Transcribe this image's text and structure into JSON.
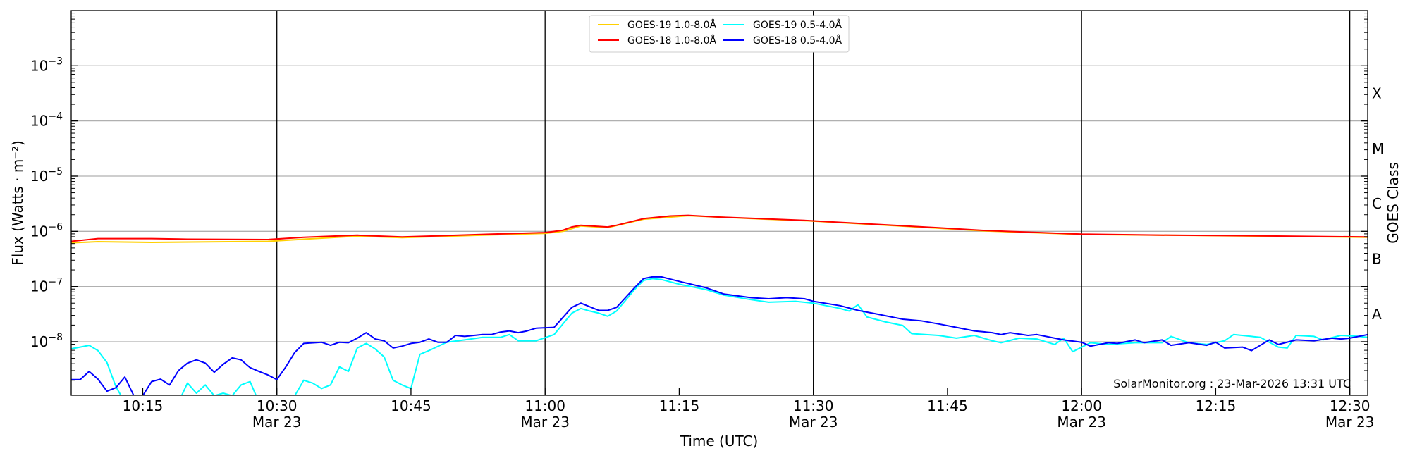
{
  "chart_data": {
    "type": "line",
    "title": "",
    "xlabel": "Time (UTC)",
    "ylabel": "Flux (Watts · m⁻²)",
    "ylabel2": "GOES Class",
    "yscale": "log",
    "ylim": [
      1.07e-09,
      0.01
    ],
    "xlim": [
      "10:07",
      "12:32"
    ],
    "grid": "horizontal at decades",
    "legend_position": "top-center",
    "annotation": "SolarMonitor.org : 23-Mar-2026 13:31 UTC",
    "x_ticks": [
      {
        "time": "10:15",
        "label": "10:15",
        "sublabel": "",
        "major": false
      },
      {
        "time": "10:30",
        "label": "10:30",
        "sublabel": "Mar 23",
        "major": true
      },
      {
        "time": "10:45",
        "label": "10:45",
        "sublabel": "",
        "major": false
      },
      {
        "time": "11:00",
        "label": "11:00",
        "sublabel": "Mar 23",
        "major": true
      },
      {
        "time": "11:15",
        "label": "11:15",
        "sublabel": "",
        "major": false
      },
      {
        "time": "11:30",
        "label": "11:30",
        "sublabel": "Mar 23",
        "major": true
      },
      {
        "time": "11:45",
        "label": "11:45",
        "sublabel": "",
        "major": false
      },
      {
        "time": "12:00",
        "label": "12:00",
        "sublabel": "Mar 23",
        "major": true
      },
      {
        "time": "12:15",
        "label": "12:15",
        "sublabel": "",
        "major": false
      },
      {
        "time": "12:30",
        "label": "12:30",
        "sublabel": "Mar 23",
        "major": true
      }
    ],
    "y_ticks": [
      {
        "value": 0.001,
        "base": "10",
        "exp": "−3"
      },
      {
        "value": 0.0001,
        "base": "10",
        "exp": "−4"
      },
      {
        "value": 1e-05,
        "base": "10",
        "exp": "−5"
      },
      {
        "value": 1e-06,
        "base": "10",
        "exp": "−6"
      },
      {
        "value": 1e-07,
        "base": "10",
        "exp": "−7"
      },
      {
        "value": 1e-08,
        "base": "10",
        "exp": "−8"
      }
    ],
    "goes_classes": [
      {
        "label": "X",
        "value": 0.000316
      },
      {
        "label": "M",
        "value": 3.16e-05
      },
      {
        "label": "C",
        "value": 3.16e-06
      },
      {
        "label": "B",
        "value": 3.16e-07
      },
      {
        "label": "A",
        "value": 3.16e-08
      }
    ],
    "series": [
      {
        "name": "GOES-19 1.0-8.0Å",
        "color": "#ffd000",
        "points": [
          [
            "10:07",
            6.2e-07
          ],
          [
            "10:10",
            6.5e-07
          ],
          [
            "10:16",
            6.3e-07
          ],
          [
            "10:29",
            6.6e-07
          ],
          [
            "10:33",
            7.2e-07
          ],
          [
            "10:39",
            8.2e-07
          ],
          [
            "10:44",
            7.7e-07
          ],
          [
            "10:54",
            8.6e-07
          ],
          [
            "11:00",
            9.2e-07
          ],
          [
            "11:02",
            1e-06
          ],
          [
            "11:04",
            1.25e-06
          ],
          [
            "11:07",
            1.17e-06
          ],
          [
            "11:11",
            1.66e-06
          ],
          [
            "11:16",
            1.92e-06
          ],
          [
            "11:24",
            1.68e-06
          ],
          [
            "11:29",
            1.56e-06
          ],
          [
            "11:39",
            1.27e-06
          ],
          [
            "11:49",
            1.02e-06
          ],
          [
            "12:00",
            8.8e-07
          ],
          [
            "12:20",
            8.2e-07
          ],
          [
            "12:32",
            7.8e-07
          ]
        ]
      },
      {
        "name": "GOES-18 1.0-8.0Å",
        "color": "#ff0000",
        "points": [
          [
            "10:07",
            6.6e-07
          ],
          [
            "10:10",
            7.4e-07
          ],
          [
            "10:16",
            7.4e-07
          ],
          [
            "10:20",
            7.2e-07
          ],
          [
            "10:29",
            7.1e-07
          ],
          [
            "10:33",
            7.8e-07
          ],
          [
            "10:39",
            8.5e-07
          ],
          [
            "10:44",
            7.9e-07
          ],
          [
            "10:54",
            8.9e-07
          ],
          [
            "11:00",
            9.5e-07
          ],
          [
            "11:02",
            1.05e-06
          ],
          [
            "11:03",
            1.2e-06
          ],
          [
            "11:04",
            1.29e-06
          ],
          [
            "11:07",
            1.2e-06
          ],
          [
            "11:08",
            1.29e-06
          ],
          [
            "11:11",
            1.7e-06
          ],
          [
            "11:14",
            1.9e-06
          ],
          [
            "11:16",
            1.95e-06
          ],
          [
            "11:19",
            1.83e-06
          ],
          [
            "11:24",
            1.7e-06
          ],
          [
            "11:29",
            1.58e-06
          ],
          [
            "11:39",
            1.29e-06
          ],
          [
            "11:44",
            1.16e-06
          ],
          [
            "11:49",
            1.04e-06
          ],
          [
            "12:00",
            8.9e-07
          ],
          [
            "12:10",
            8.5e-07
          ],
          [
            "12:20",
            8.3e-07
          ],
          [
            "12:32",
            7.9e-07
          ]
        ]
      },
      {
        "name": "GOES-19 0.5-4.0Å",
        "color": "#00ffff",
        "points": [
          [
            "10:07",
            7.4e-09
          ],
          [
            "10:08",
            8e-09
          ],
          [
            "10:09",
            8.6e-09
          ],
          [
            "10:10",
            6.9e-09
          ],
          [
            "10:11",
            4.2e-09
          ],
          [
            "10:12",
            1.53e-09
          ],
          [
            "10:13",
            8e-10
          ],
          [
            "10:14",
            8e-10
          ],
          [
            "10:15",
            1.05e-09
          ],
          [
            "10:16",
            8e-10
          ],
          [
            "10:19",
            8e-10
          ],
          [
            "10:20",
            1.78e-09
          ],
          [
            "10:21",
            1.17e-09
          ],
          [
            "10:22",
            1.65e-09
          ],
          [
            "10:23",
            1.05e-09
          ],
          [
            "10:24",
            1.17e-09
          ],
          [
            "10:25",
            1.05e-09
          ],
          [
            "10:26",
            1.65e-09
          ],
          [
            "10:27",
            1.9e-09
          ],
          [
            "10:28",
            8e-10
          ],
          [
            "10:32",
            1.05e-09
          ],
          [
            "10:33",
            2e-09
          ],
          [
            "10:34",
            1.78e-09
          ],
          [
            "10:35",
            1.42e-09
          ],
          [
            "10:36",
            1.65e-09
          ],
          [
            "10:37",
            3.5e-09
          ],
          [
            "10:38",
            2.9e-09
          ],
          [
            "10:39",
            7.7e-09
          ],
          [
            "10:40",
            9.3e-09
          ],
          [
            "10:41",
            7.4e-09
          ],
          [
            "10:42",
            5.3e-09
          ],
          [
            "10:43",
            2e-09
          ],
          [
            "10:44",
            1.65e-09
          ],
          [
            "10:45",
            1.42e-09
          ],
          [
            "10:46",
            5.9e-09
          ],
          [
            "10:47",
            6.9e-09
          ],
          [
            "10:49",
            9.8e-09
          ],
          [
            "10:51",
            1.08e-08
          ],
          [
            "10:53",
            1.2e-08
          ],
          [
            "10:55",
            1.2e-08
          ],
          [
            "10:56",
            1.35e-08
          ],
          [
            "10:57",
            1.04e-08
          ],
          [
            "10:59",
            1.04e-08
          ],
          [
            "11:01",
            1.35e-08
          ],
          [
            "11:03",
            3.3e-08
          ],
          [
            "11:04",
            4e-08
          ],
          [
            "11:05",
            3.6e-08
          ],
          [
            "11:06",
            3.3e-08
          ],
          [
            "11:07",
            2.9e-08
          ],
          [
            "11:08",
            3.6e-08
          ],
          [
            "11:10",
            8.8e-08
          ],
          [
            "11:11",
            1.29e-07
          ],
          [
            "11:12",
            1.39e-07
          ],
          [
            "11:13",
            1.34e-07
          ],
          [
            "11:15",
            1.1e-07
          ],
          [
            "11:18",
            8.8e-08
          ],
          [
            "11:20",
            7e-08
          ],
          [
            "11:23",
            5.8e-08
          ],
          [
            "11:25",
            5.2e-08
          ],
          [
            "11:28",
            5.4e-08
          ],
          [
            "11:30",
            5e-08
          ],
          [
            "11:33",
            4e-08
          ],
          [
            "11:34",
            3.6e-08
          ],
          [
            "11:35",
            4.7e-08
          ],
          [
            "11:36",
            2.8e-08
          ],
          [
            "11:38",
            2.3e-08
          ],
          [
            "11:40",
            1.97e-08
          ],
          [
            "11:41",
            1.4e-08
          ],
          [
            "11:44",
            1.3e-08
          ],
          [
            "11:46",
            1.16e-08
          ],
          [
            "11:48",
            1.3e-08
          ],
          [
            "11:50",
            1.04e-08
          ],
          [
            "11:51",
            9.6e-09
          ],
          [
            "11:53",
            1.16e-08
          ],
          [
            "11:55",
            1.12e-08
          ],
          [
            "11:57",
            8.9e-09
          ],
          [
            "11:58",
            1.16e-08
          ],
          [
            "11:59",
            6.6e-09
          ],
          [
            "12:01",
            9.6e-09
          ],
          [
            "12:03",
            8.9e-09
          ],
          [
            "12:06",
            9.6e-09
          ],
          [
            "12:09",
            9.6e-09
          ],
          [
            "12:10",
            1.25e-08
          ],
          [
            "12:12",
            9.6e-09
          ],
          [
            "12:14",
            8.9e-09
          ],
          [
            "12:16",
            1.04e-08
          ],
          [
            "12:17",
            1.35e-08
          ],
          [
            "12:19",
            1.25e-08
          ],
          [
            "12:20",
            1.2e-08
          ],
          [
            "12:22",
            8e-09
          ],
          [
            "12:23",
            7.7e-09
          ],
          [
            "12:24",
            1.3e-08
          ],
          [
            "12:26",
            1.25e-08
          ],
          [
            "12:27",
            1.08e-08
          ],
          [
            "12:29",
            1.3e-08
          ],
          [
            "12:31",
            1.25e-08
          ],
          [
            "12:32",
            1.2e-08
          ]
        ]
      },
      {
        "name": "GOES-18 0.5-4.0Å",
        "color": "#0000ff",
        "points": [
          [
            "10:07",
            2.06e-09
          ],
          [
            "10:08",
            2.06e-09
          ],
          [
            "10:09",
            2.9e-09
          ],
          [
            "10:10",
            2.1e-09
          ],
          [
            "10:11",
            1.27e-09
          ],
          [
            "10:12",
            1.47e-09
          ],
          [
            "10:13",
            2.3e-09
          ],
          [
            "10:14",
            1.05e-09
          ],
          [
            "10:15",
            1.05e-09
          ],
          [
            "10:16",
            1.9e-09
          ],
          [
            "10:17",
            2.1e-09
          ],
          [
            "10:18",
            1.65e-09
          ],
          [
            "10:19",
            3e-09
          ],
          [
            "10:20",
            4.1e-09
          ],
          [
            "10:21",
            4.7e-09
          ],
          [
            "10:22",
            4.1e-09
          ],
          [
            "10:23",
            2.8e-09
          ],
          [
            "10:24",
            3.9e-09
          ],
          [
            "10:25",
            5.1e-09
          ],
          [
            "10:26",
            4.7e-09
          ],
          [
            "10:27",
            3.4e-09
          ],
          [
            "10:28",
            2.9e-09
          ],
          [
            "10:29",
            2.5e-09
          ],
          [
            "10:30",
            2.06e-09
          ],
          [
            "10:31",
            3.5e-09
          ],
          [
            "10:32",
            6.4e-09
          ],
          [
            "10:33",
            9.3e-09
          ],
          [
            "10:35",
            9.8e-09
          ],
          [
            "10:36",
            8.6e-09
          ],
          [
            "10:37",
            9.8e-09
          ],
          [
            "10:38",
            9.6e-09
          ],
          [
            "10:39",
            1.16e-08
          ],
          [
            "10:40",
            1.46e-08
          ],
          [
            "10:41",
            1.12e-08
          ],
          [
            "10:42",
            1.04e-08
          ],
          [
            "10:43",
            7.7e-09
          ],
          [
            "10:44",
            8.3e-09
          ],
          [
            "10:45",
            9.3e-09
          ],
          [
            "10:46",
            9.8e-09
          ],
          [
            "10:47",
            1.12e-08
          ],
          [
            "10:48",
            9.8e-09
          ],
          [
            "10:49",
            9.8e-09
          ],
          [
            "10:50",
            1.3e-08
          ],
          [
            "10:51",
            1.25e-08
          ],
          [
            "10:53",
            1.35e-08
          ],
          [
            "10:54",
            1.35e-08
          ],
          [
            "10:55",
            1.5e-08
          ],
          [
            "10:56",
            1.57e-08
          ],
          [
            "10:57",
            1.46e-08
          ],
          [
            "10:58",
            1.57e-08
          ],
          [
            "10:59",
            1.76e-08
          ],
          [
            "11:01",
            1.82e-08
          ],
          [
            "11:03",
            4.2e-08
          ],
          [
            "11:04",
            5e-08
          ],
          [
            "11:06",
            3.7e-08
          ],
          [
            "11:07",
            3.7e-08
          ],
          [
            "11:08",
            4.2e-08
          ],
          [
            "11:10",
            9.5e-08
          ],
          [
            "11:11",
            1.39e-07
          ],
          [
            "11:12",
            1.5e-07
          ],
          [
            "11:13",
            1.5e-07
          ],
          [
            "11:15",
            1.24e-07
          ],
          [
            "11:18",
            9.5e-08
          ],
          [
            "11:20",
            7.3e-08
          ],
          [
            "11:23",
            6.3e-08
          ],
          [
            "11:25",
            6e-08
          ],
          [
            "11:27",
            6.3e-08
          ],
          [
            "11:29",
            6e-08
          ],
          [
            "11:30",
            5.4e-08
          ],
          [
            "11:33",
            4.5e-08
          ],
          [
            "11:35",
            3.7e-08
          ],
          [
            "11:37",
            3.2e-08
          ],
          [
            "11:40",
            2.56e-08
          ],
          [
            "11:42",
            2.4e-08
          ],
          [
            "11:44",
            2.1e-08
          ],
          [
            "11:46",
            1.82e-08
          ],
          [
            "11:48",
            1.57e-08
          ],
          [
            "11:50",
            1.46e-08
          ],
          [
            "11:51",
            1.35e-08
          ],
          [
            "11:52",
            1.46e-08
          ],
          [
            "11:54",
            1.3e-08
          ],
          [
            "11:55",
            1.35e-08
          ],
          [
            "11:57",
            1.16e-08
          ],
          [
            "11:58",
            1.08e-08
          ],
          [
            "12:00",
            9.8e-09
          ],
          [
            "12:01",
            8.3e-09
          ],
          [
            "12:03",
            9.6e-09
          ],
          [
            "12:04",
            9.3e-09
          ],
          [
            "12:06",
            1.08e-08
          ],
          [
            "12:07",
            9.6e-09
          ],
          [
            "12:09",
            1.08e-08
          ],
          [
            "12:10",
            8.6e-09
          ],
          [
            "12:12",
            9.6e-09
          ],
          [
            "12:14",
            8.6e-09
          ],
          [
            "12:15",
            9.8e-09
          ],
          [
            "12:16",
            7.7e-09
          ],
          [
            "12:18",
            8e-09
          ],
          [
            "12:19",
            6.9e-09
          ],
          [
            "12:21",
            1.08e-08
          ],
          [
            "12:22",
            8.9e-09
          ],
          [
            "12:24",
            1.08e-08
          ],
          [
            "12:26",
            1.04e-08
          ],
          [
            "12:28",
            1.16e-08
          ],
          [
            "12:29",
            1.12e-08
          ],
          [
            "12:30",
            1.16e-08
          ],
          [
            "12:32",
            1.35e-08
          ]
        ]
      }
    ],
    "legend_order": [
      0,
      1,
      2,
      3
    ]
  }
}
